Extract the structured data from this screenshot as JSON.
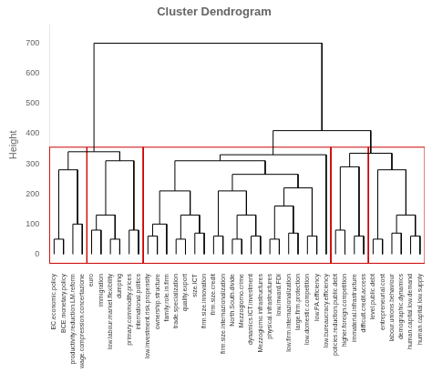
{
  "chart_data": {
    "type": "dendrogram",
    "title": "Cluster Dendrogram",
    "ylabel": "Height",
    "categories": [
      "EC.economic.policy",
      "BCE.monetary.policy",
      "productivity.reduction.LM.reform",
      "wage.compression.concertazione",
      "euro",
      "immigration",
      "low.labour.market.flexibility",
      "dumping",
      "primary.commodity.prices",
      "international.politics",
      "low.investment.risk.propensity",
      "ownership.structure",
      "family.role.in.firm",
      "trade.specialization",
      "quality.export",
      "size.ICT",
      "firm.size.innovation",
      "firm.size.credit",
      "firm.size.internazionalization",
      "North.South.divide",
      "Mezzogiorno.crime",
      "dynamics.ICT.investment",
      "Mezzogiorno.infrastructures",
      "physical.infrastructures",
      "low.inward.FDI",
      "low.firm.internazionalization",
      "large.firm.protection",
      "low.domestic.competition",
      "low.PA.efficiency",
      "low.bureaucracy.efficiency",
      "policies.reduction.public.debt",
      "higher.foreign.competition",
      "immaterial.infrastructure",
      "difficult.credit.access",
      "level.public.debt",
      "entrepreneurial.cost",
      "labour.unions.behaviour",
      "demographic.dynamics",
      "human.capital.low.demand",
      "human.capital.low.supply"
    ],
    "linkage": [
      {
        "left": 0,
        "right": 1,
        "height": 50
      },
      {
        "left": 2,
        "right": 3,
        "height": 100
      },
      {
        "left": 40,
        "right": 41,
        "height": 280
      },
      {
        "left": 4,
        "right": 5,
        "height": 80
      },
      {
        "left": 6,
        "right": 7,
        "height": 50
      },
      {
        "left": 8,
        "right": 9,
        "height": 80
      },
      {
        "left": 43,
        "right": 44,
        "height": 130
      },
      {
        "left": 46,
        "right": 45,
        "height": 310
      },
      {
        "left": 10,
        "right": 11,
        "height": 60
      },
      {
        "left": 48,
        "right": 12,
        "height": 100
      },
      {
        "left": 13,
        "right": 14,
        "height": 50
      },
      {
        "left": 15,
        "right": 16,
        "height": 70
      },
      {
        "left": 50,
        "right": 51,
        "height": 130
      },
      {
        "left": 49,
        "right": 52,
        "height": 210
      },
      {
        "left": 17,
        "right": 18,
        "height": 60
      },
      {
        "left": 19,
        "right": 20,
        "height": 50
      },
      {
        "left": 21,
        "right": 22,
        "height": 60
      },
      {
        "left": 55,
        "right": 56,
        "height": 130
      },
      {
        "left": 54,
        "right": 57,
        "height": 210
      },
      {
        "left": 23,
        "right": 24,
        "height": 50
      },
      {
        "left": 25,
        "right": 26,
        "height": 70
      },
      {
        "left": 59,
        "right": 60,
        "height": 160
      },
      {
        "left": 27,
        "right": 28,
        "height": 60
      },
      {
        "left": 61,
        "right": 62,
        "height": 220
      },
      {
        "left": 58,
        "right": 63,
        "height": 265
      },
      {
        "left": 53,
        "right": 64,
        "height": 310
      },
      {
        "left": 65,
        "right": 29,
        "height": 330
      },
      {
        "left": 30,
        "right": 31,
        "height": 80
      },
      {
        "left": 32,
        "right": 33,
        "height": 60
      },
      {
        "left": 67,
        "right": 68,
        "height": 290
      },
      {
        "left": 34,
        "right": 35,
        "height": 50
      },
      {
        "left": 36,
        "right": 37,
        "height": 70
      },
      {
        "left": 38,
        "right": 39,
        "height": 60
      },
      {
        "left": 71,
        "right": 72,
        "height": 130
      },
      {
        "left": 70,
        "right": 73,
        "height": 280
      },
      {
        "left": 69,
        "right": 74,
        "height": 335
      },
      {
        "left": 66,
        "right": 75,
        "height": 410
      },
      {
        "left": 42,
        "right": 47,
        "height": 340
      },
      {
        "left": 77,
        "right": 76,
        "height": 700
      }
    ],
    "color": "black",
    "cluster_boxes": {
      "groups": [
        [
          "EC.economic.policy",
          "BCE.monetary.policy",
          "productivity.reduction.LM.reform",
          "wage.compression.concertazione"
        ],
        [
          "euro",
          "immigration",
          "low.labour.market.flexibility",
          "dumping",
          "primary.commodity.prices",
          "international.politics"
        ],
        [
          "low.investment.risk.propensity",
          "ownership.structure",
          "family.role.in.firm",
          "trade.specialization",
          "quality.export",
          "size.ICT",
          "firm.size.innovation",
          "firm.size.credit",
          "firm.size.internazionalization",
          "North.South.divide",
          "Mezzogiorno.crime",
          "dynamics.ICT.investment",
          "Mezzogiorno.infrastructures",
          "physical.infrastructures",
          "low.inward.FDI",
          "low.firm.internazionalization",
          "large.firm.protection",
          "low.domestic.competition",
          "low.PA.efficiency",
          "low.bureaucracy.efficiency"
        ],
        [
          "policies.reduction.public.debt",
          "higher.foreign.competition",
          "immaterial.infrastructure",
          "difficult.credit.access"
        ],
        [
          "level.public.debt",
          "entrepreneurial.cost",
          "labour.unions.behaviour",
          "demographic.dynamics",
          "human.capital.low.demand",
          "human.capital.low.supply"
        ]
      ],
      "top": 355,
      "bottom": -30,
      "color": "#cc0000"
    },
    "ylim": [
      -35,
      760
    ],
    "yticks": [
      0,
      100,
      200,
      300,
      400,
      500,
      600,
      700
    ],
    "grid": false,
    "legend": false
  }
}
